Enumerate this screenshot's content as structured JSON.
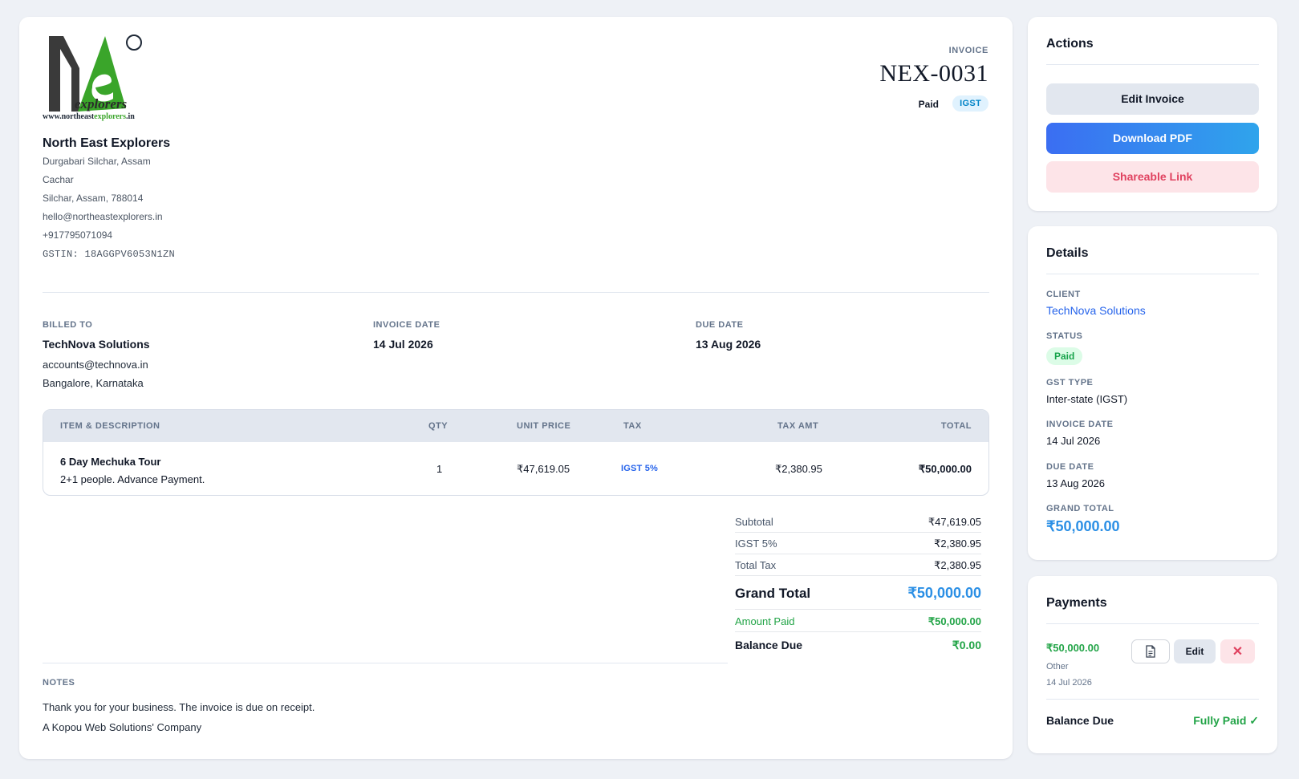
{
  "company": {
    "logo_text": "explorers",
    "logo_url_prefix": "www.northeast",
    "logo_url_highlight": "explorers",
    "logo_url_suffix": ".in",
    "name": "North East Explorers",
    "address_line1": "Durgabari Silchar, Assam",
    "address_line2": "Cachar",
    "address_line3": "Silchar, Assam, 788014",
    "email": "hello@northeastexplorers.in",
    "phone": "+917795071094",
    "gstin": "GSTIN: 18AGGPV6053N1ZN"
  },
  "invoice": {
    "label": "INVOICE",
    "number": "NEX-0031",
    "status": "Paid",
    "gst_badge": "IGST"
  },
  "billing": {
    "billed_to_label": "BILLED TO",
    "client_name": "TechNova Solutions",
    "client_email": "accounts@technova.in",
    "client_location": "Bangalore, Karnataka",
    "invoice_date_label": "INVOICE DATE",
    "invoice_date": "14 Jul 2026",
    "due_date_label": "DUE DATE",
    "due_date": "13 Aug 2026"
  },
  "items": {
    "columns": [
      "ITEM & DESCRIPTION",
      "QTY",
      "UNIT PRICE",
      "TAX",
      "TAX AMT",
      "TOTAL"
    ],
    "rows": [
      {
        "name": "6 Day Mechuka Tour",
        "description": "2+1 people. Advance Payment.",
        "qty": "1",
        "unit_price": "₹47,619.05",
        "tax": "IGST 5%",
        "tax_amt": "₹2,380.95",
        "total": "₹50,000.00"
      }
    ]
  },
  "summary": {
    "subtotal_label": "Subtotal",
    "subtotal": "₹47,619.05",
    "igst_label": "IGST 5%",
    "igst": "₹2,380.95",
    "total_tax_label": "Total Tax",
    "total_tax": "₹2,380.95",
    "grand_total_label": "Grand Total",
    "grand_total": "₹50,000.00",
    "amount_paid_label": "Amount Paid",
    "amount_paid": "₹50,000.00",
    "balance_due_label": "Balance Due",
    "balance_due": "₹0.00"
  },
  "notes": {
    "label": "NOTES",
    "line1": "Thank you for your business. The invoice is due on receipt.",
    "line2": "A Kopou Web Solutions' Company"
  },
  "actions": {
    "title": "Actions",
    "edit_label": "Edit Invoice",
    "download_label": "Download PDF",
    "share_label": "Shareable Link"
  },
  "details": {
    "title": "Details",
    "client_label": "CLIENT",
    "client": "TechNova Solutions",
    "status_label": "STATUS",
    "status": "Paid",
    "gst_type_label": "GST TYPE",
    "gst_type": "Inter-state (IGST)",
    "invoice_date_label": "INVOICE DATE",
    "invoice_date": "14 Jul 2026",
    "due_date_label": "DUE DATE",
    "due_date": "13 Aug 2026",
    "grand_total_label": "GRAND TOTAL",
    "grand_total": "₹50,000.00"
  },
  "payments": {
    "title": "Payments",
    "amount": "₹50,000.00",
    "method": "Other",
    "date": "14 Jul 2026",
    "edit_label": "Edit",
    "delete_glyph": "✕",
    "balance_label": "Balance Due",
    "balance_value": "Fully Paid ✓"
  },
  "colors": {
    "accent_blue": "#2b8fe5",
    "paid_green": "#22a447",
    "danger_pink": "#e0415f",
    "logo_green": "#3aa52a"
  },
  "icons": {
    "compass": "compass-icon",
    "document": "document-icon",
    "close": "close-icon"
  }
}
